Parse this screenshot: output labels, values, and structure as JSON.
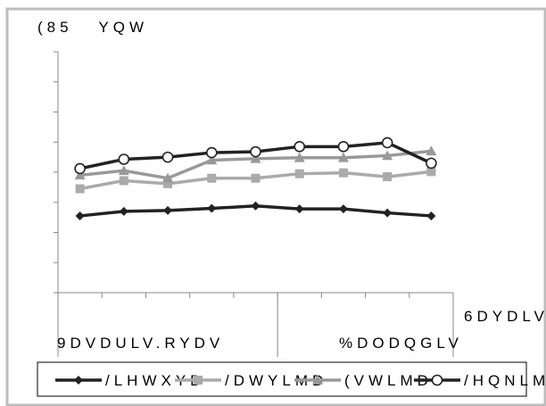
{
  "chart_data": {
    "type": "line",
    "title": "",
    "subtitle": "",
    "unit_label": "(85   YQW",
    "xlabel": "6DYDLV",
    "ylabel": "",
    "categories": [
      "",
      "",
      "",
      "",
      "",
      "",
      "",
      "",
      ""
    ],
    "category_groups": [
      "9DVDULV.RYDV",
      "%DODQGLV"
    ],
    "ylim": [
      0,
      8
    ],
    "grid": false,
    "legend_position": "bottom",
    "series": [
      {
        "name": "/LHWXYD",
        "marker": "diamond",
        "color": "#222222",
        "values": [
          2.55,
          2.7,
          2.73,
          2.8,
          2.88,
          2.78,
          2.78,
          2.65,
          2.55
        ]
      },
      {
        "name": "/DWYLMD",
        "marker": "square",
        "color": "#aaaaaa",
        "values": [
          3.45,
          3.72,
          3.62,
          3.8,
          3.8,
          3.95,
          3.98,
          3.85,
          4.02
        ]
      },
      {
        "name": "(VWLMD",
        "marker": "triangle",
        "color": "#999999",
        "values": [
          3.9,
          4.05,
          3.8,
          4.4,
          4.45,
          4.48,
          4.48,
          4.55,
          4.7
        ]
      },
      {
        "name": "/HQNLMD",
        "marker": "circle",
        "color": "#222222",
        "values": [
          4.12,
          4.43,
          4.5,
          4.65,
          4.68,
          4.85,
          4.85,
          4.98,
          4.3
        ]
      }
    ]
  }
}
